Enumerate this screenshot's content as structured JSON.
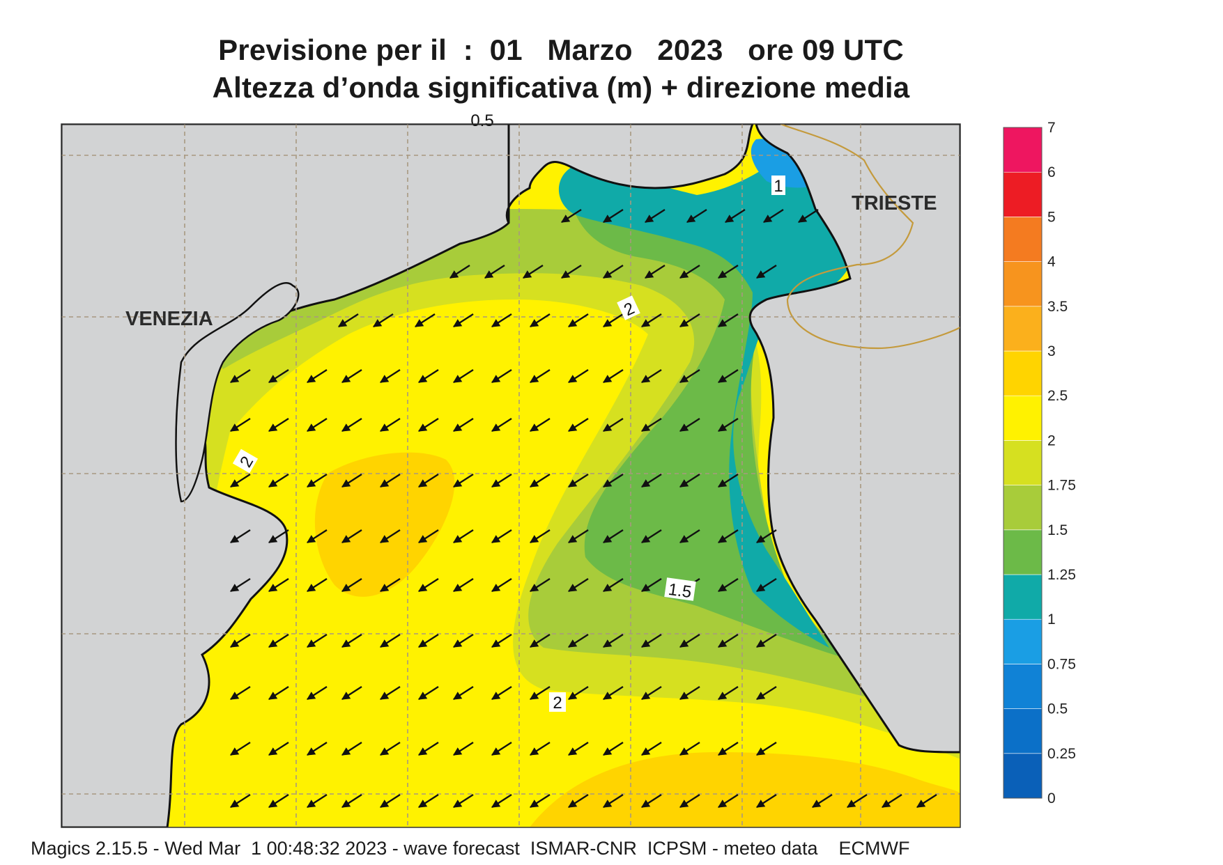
{
  "header": {
    "title_line1": "Previsione per il  :  01   Marzo   2023   ore 09 UTC",
    "title_line2": "Altezza d’onda significativa (m) + direzione media"
  },
  "map": {
    "cities": [
      {
        "name": "VENEZIA"
      },
      {
        "name": "TRIESTE"
      }
    ],
    "contour_labels": [
      "1",
      "2",
      "2",
      "1.5",
      "2"
    ],
    "top_edge_label": "0.5",
    "mean_direction": "south-west",
    "colors": {
      "land": "#d2d3d4",
      "coast": "#111111",
      "grid": "#a89880",
      "border": "#c49a3c"
    }
  },
  "legend": {
    "title": "",
    "classes": [
      {
        "min": "0",
        "max": "0.25",
        "color": "#0a60b8"
      },
      {
        "min": "0.25",
        "max": "0.5",
        "color": "#0b70c8"
      },
      {
        "min": "0.5",
        "max": "0.75",
        "color": "#1082d6"
      },
      {
        "min": "0.75",
        "max": "1",
        "color": "#1a9ee4"
      },
      {
        "min": "1",
        "max": "1.25",
        "color": "#10aaa8"
      },
      {
        "min": "1.25",
        "max": "1.5",
        "color": "#6cba48"
      },
      {
        "min": "1.5",
        "max": "1.75",
        "color": "#a8cc3a"
      },
      {
        "min": "1.75",
        "max": "2",
        "color": "#d6e020"
      },
      {
        "min": "2",
        "max": "2.5",
        "color": "#fff200"
      },
      {
        "min": "2.5",
        "max": "3",
        "color": "#ffd400"
      },
      {
        "min": "3",
        "max": "3.5",
        "color": "#fbb01c"
      },
      {
        "min": "3.5",
        "max": "4",
        "color": "#f7941e"
      },
      {
        "min": "4",
        "max": "5",
        "color": "#f47b20"
      },
      {
        "min": "5",
        "max": "6",
        "color": "#ed1c24"
      },
      {
        "min": "6",
        "max": "7",
        "color": "#ee1660"
      }
    ],
    "tick_labels": [
      "0",
      "0.25",
      "0.5",
      "0.75",
      "1",
      "1.25",
      "1.5",
      "1.75",
      "2",
      "2.5",
      "3",
      "3.5",
      "4",
      "5",
      "6",
      "7"
    ]
  },
  "footer": {
    "text": "Magics 2.15.5 - Wed Mar  1 00:48:32 2023 - wave forecast  ISMAR-CNR  ICPSM - meteo data    ECMWF"
  }
}
